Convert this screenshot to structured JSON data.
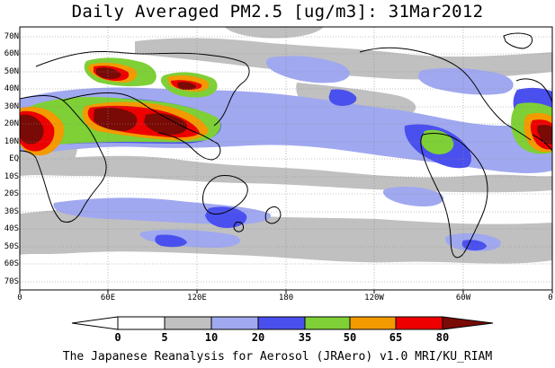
{
  "title": "Daily Averaged PM2.5 [ug/m3]: 31Mar2012",
  "credit": "The Japanese Reanalysis for Aerosol (JRAero) v1.0 MRI/KU_RIAM",
  "map": {
    "projection": "equirectangular",
    "lon_range": [
      0,
      360
    ],
    "lat_range": [
      -75,
      75
    ],
    "lat_ticks": [
      "70N",
      "60N",
      "50N",
      "40N",
      "30N",
      "20N",
      "10N",
      "EQ",
      "10S",
      "20S",
      "30S",
      "40S",
      "50S",
      "60S",
      "70S"
    ],
    "lon_ticks": [
      "0",
      "60E",
      "120E",
      "180",
      "120W",
      "60W",
      "0"
    ],
    "gridlines": "dotted",
    "colors": {
      "bg": "#ffffff",
      "level_5_10": "#c0c0c0",
      "level_10_20": "#a0a8f0",
      "level_20_35": "#4a50ee",
      "level_35_50": "#7ed036",
      "level_50_65": "#f39a00",
      "level_65_80": "#ee0000",
      "level_80_up": "#7a0a06",
      "coast": "#000000"
    }
  },
  "colorbar": {
    "levels": [
      "0",
      "5",
      "10",
      "20",
      "35",
      "50",
      "65",
      "80"
    ],
    "colors": [
      "#ffffff",
      "#c0c0c0",
      "#a0a8f0",
      "#4a50ee",
      "#7ed036",
      "#f39a00",
      "#ee0000",
      "#7a0a06"
    ],
    "extend": "both"
  }
}
